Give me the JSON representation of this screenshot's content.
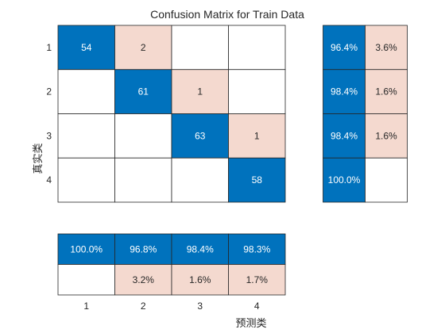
{
  "chart_data": {
    "type": "heatmap",
    "title": "Confusion Matrix for Train Data",
    "xlabel": "预测类",
    "ylabel": "真实类",
    "classes": [
      "1",
      "2",
      "3",
      "4"
    ],
    "matrix": [
      [
        54,
        2,
        null,
        null
      ],
      [
        null,
        61,
        1,
        null
      ],
      [
        null,
        null,
        63,
        1
      ],
      [
        null,
        null,
        null,
        58
      ]
    ],
    "row_summary": [
      {
        "correct": "96.4%",
        "incorrect": "3.6%"
      },
      {
        "correct": "98.4%",
        "incorrect": "1.6%"
      },
      {
        "correct": "98.4%",
        "incorrect": "1.6%"
      },
      {
        "correct": "100.0%",
        "incorrect": ""
      }
    ],
    "column_summary": [
      {
        "correct": "100.0%",
        "incorrect": ""
      },
      {
        "correct": "96.8%",
        "incorrect": "3.2%"
      },
      {
        "correct": "98.4%",
        "incorrect": "1.6%"
      },
      {
        "correct": "98.3%",
        "incorrect": "1.7%"
      }
    ],
    "colors": {
      "correct": "#0072bd",
      "incorrect": "#f4d9cf",
      "empty": "#ffffff",
      "grid": "#262626",
      "text_on_correct": "#ffffff",
      "text_on_incorrect": "#262626"
    }
  }
}
